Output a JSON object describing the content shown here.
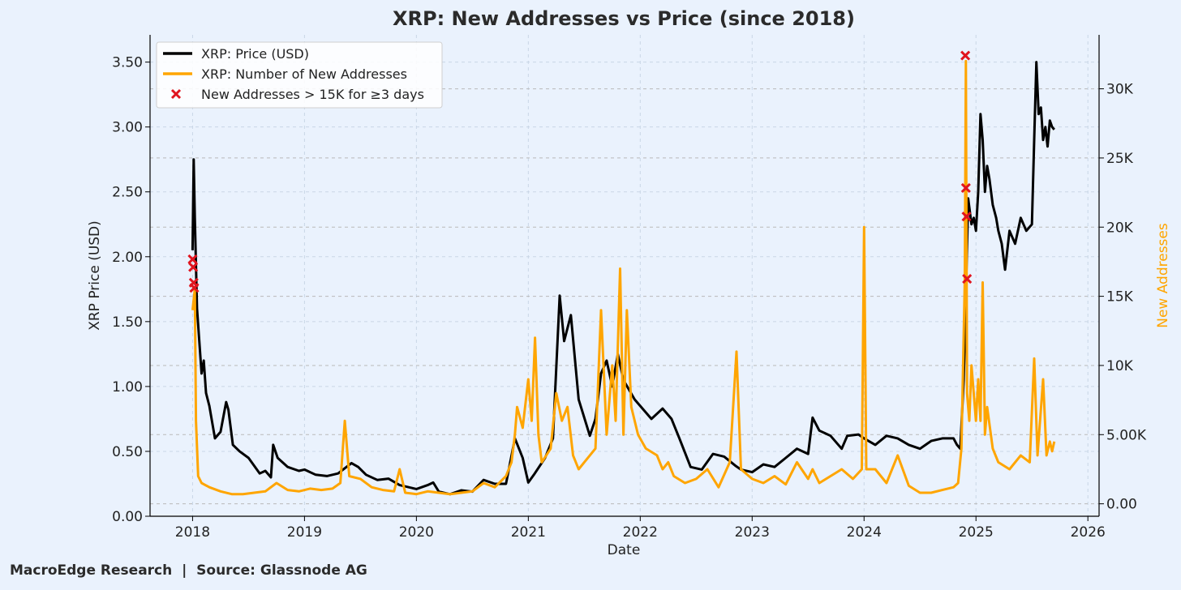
{
  "footer": {
    "brand": "MacroEdge Research",
    "separator": "|",
    "source": "Source: Glassnode AG"
  },
  "chart_data": {
    "type": "line",
    "title": "XRP: New Addresses vs Price (since 2018)",
    "xlabel": "Date",
    "ylabel": "XRP Price (USD)",
    "y2label": "New Addresses",
    "xlim": [
      2017.62,
      2026.1
    ],
    "ylim": [
      0,
      3.71
    ],
    "y2lim": [
      -900,
      33900
    ],
    "xticks": [
      2018,
      2019,
      2020,
      2021,
      2022,
      2023,
      2024,
      2025,
      2026
    ],
    "xtick_labels": [
      "2018",
      "2019",
      "2020",
      "2021",
      "2022",
      "2023",
      "2024",
      "2025",
      "2026"
    ],
    "yticks": [
      0,
      0.5,
      1.0,
      1.5,
      2.0,
      2.5,
      3.0,
      3.5
    ],
    "ytick_labels": [
      "0.00",
      "0.50",
      "1.00",
      "1.50",
      "2.00",
      "2.50",
      "3.00",
      "3.50"
    ],
    "y2ticks": [
      0,
      5000,
      10000,
      15000,
      20000,
      25000,
      30000
    ],
    "y2tick_labels": [
      "0.00",
      "5.00K",
      "10K",
      "15K",
      "20K",
      "25K",
      "30K"
    ],
    "grid": true,
    "legend_position": "top-left",
    "colors": {
      "price": "#000000",
      "addresses": "#ffa500",
      "marker": "#e0141e",
      "y2label": "#ffa500"
    },
    "series": [
      {
        "name": "XRP: Price (USD)",
        "axis": "left",
        "x": [
          2018.0,
          2018.01,
          2018.02,
          2018.04,
          2018.06,
          2018.08,
          2018.1,
          2018.12,
          2018.15,
          2018.2,
          2018.25,
          2018.3,
          2018.32,
          2018.36,
          2018.42,
          2018.5,
          2018.6,
          2018.65,
          2018.7,
          2018.72,
          2018.76,
          2018.85,
          2018.95,
          2019.0,
          2019.1,
          2019.2,
          2019.3,
          2019.42,
          2019.48,
          2019.55,
          2019.65,
          2019.75,
          2019.85,
          2020.0,
          2020.1,
          2020.15,
          2020.2,
          2020.3,
          2020.4,
          2020.5,
          2020.6,
          2020.7,
          2020.8,
          2020.88,
          2020.95,
          2021.0,
          2021.05,
          2021.15,
          2021.22,
          2021.28,
          2021.32,
          2021.38,
          2021.45,
          2021.55,
          2021.6,
          2021.65,
          2021.7,
          2021.75,
          2021.8,
          2021.85,
          2021.95,
          2022.0,
          2022.1,
          2022.2,
          2022.28,
          2022.35,
          2022.45,
          2022.55,
          2022.65,
          2022.75,
          2022.85,
          2022.9,
          2023.0,
          2023.1,
          2023.2,
          2023.3,
          2023.4,
          2023.5,
          2023.54,
          2023.6,
          2023.7,
          2023.8,
          2023.85,
          2023.95,
          2024.0,
          2024.1,
          2024.2,
          2024.3,
          2024.4,
          2024.5,
          2024.6,
          2024.7,
          2024.8,
          2024.83,
          2024.86,
          2024.89,
          2024.91,
          2024.93,
          2024.96,
          2024.98,
          2025.0,
          2025.02,
          2025.04,
          2025.06,
          2025.08,
          2025.1,
          2025.12,
          2025.15,
          2025.18,
          2025.2,
          2025.23,
          2025.26,
          2025.3,
          2025.35,
          2025.4,
          2025.45,
          2025.5,
          2025.52,
          2025.54,
          2025.56,
          2025.58,
          2025.6,
          2025.62,
          2025.64,
          2025.66,
          2025.68,
          2025.7
        ],
        "values": [
          2.05,
          2.75,
          2.3,
          1.6,
          1.35,
          1.1,
          1.2,
          0.95,
          0.85,
          0.6,
          0.65,
          0.88,
          0.82,
          0.55,
          0.5,
          0.45,
          0.33,
          0.35,
          0.3,
          0.55,
          0.45,
          0.38,
          0.35,
          0.36,
          0.32,
          0.31,
          0.33,
          0.41,
          0.38,
          0.32,
          0.28,
          0.29,
          0.24,
          0.21,
          0.24,
          0.26,
          0.19,
          0.17,
          0.2,
          0.19,
          0.28,
          0.25,
          0.25,
          0.6,
          0.45,
          0.26,
          0.32,
          0.45,
          0.6,
          1.7,
          1.35,
          1.55,
          0.9,
          0.62,
          0.75,
          1.1,
          1.2,
          1.0,
          1.25,
          1.05,
          0.9,
          0.85,
          0.75,
          0.83,
          0.75,
          0.6,
          0.38,
          0.36,
          0.48,
          0.46,
          0.39,
          0.36,
          0.34,
          0.4,
          0.38,
          0.45,
          0.52,
          0.48,
          0.76,
          0.66,
          0.62,
          0.52,
          0.62,
          0.63,
          0.6,
          0.55,
          0.62,
          0.6,
          0.55,
          0.52,
          0.58,
          0.6,
          0.6,
          0.55,
          0.52,
          1.05,
          1.7,
          2.45,
          2.25,
          2.3,
          2.2,
          2.5,
          3.1,
          2.9,
          2.5,
          2.7,
          2.6,
          2.4,
          2.3,
          2.2,
          2.1,
          1.9,
          2.2,
          2.1,
          2.3,
          2.2,
          2.25,
          2.9,
          3.5,
          3.1,
          3.15,
          2.9,
          3.0,
          2.85,
          3.05,
          3.0,
          2.98
        ]
      },
      {
        "name": "XRP: Number of New Addresses",
        "axis": "right",
        "x": [
          2018.0,
          2018.02,
          2018.03,
          2018.05,
          2018.08,
          2018.15,
          2018.25,
          2018.35,
          2018.45,
          2018.55,
          2018.65,
          2018.75,
          2018.85,
          2018.95,
          2019.05,
          2019.15,
          2019.25,
          2019.32,
          2019.36,
          2019.4,
          2019.5,
          2019.6,
          2019.7,
          2019.8,
          2019.85,
          2019.9,
          2020.0,
          2020.1,
          2020.2,
          2020.3,
          2020.4,
          2020.5,
          2020.6,
          2020.7,
          2020.8,
          2020.85,
          2020.88,
          2020.9,
          2020.95,
          2021.0,
          2021.03,
          2021.06,
          2021.09,
          2021.12,
          2021.2,
          2021.25,
          2021.3,
          2021.35,
          2021.4,
          2021.45,
          2021.5,
          2021.55,
          2021.6,
          2021.65,
          2021.7,
          2021.75,
          2021.78,
          2021.82,
          2021.85,
          2021.88,
          2021.92,
          2021.98,
          2022.05,
          2022.15,
          2022.2,
          2022.25,
          2022.3,
          2022.4,
          2022.5,
          2022.6,
          2022.7,
          2022.8,
          2022.86,
          2022.9,
          2023.0,
          2023.1,
          2023.2,
          2023.3,
          2023.4,
          2023.5,
          2023.54,
          2023.6,
          2023.7,
          2023.8,
          2023.9,
          2023.98,
          2024.0,
          2024.02,
          2024.1,
          2024.2,
          2024.3,
          2024.4,
          2024.5,
          2024.6,
          2024.7,
          2024.8,
          2024.84,
          2024.87,
          2024.9,
          2024.91,
          2024.92,
          2024.94,
          2024.96,
          2025.0,
          2025.02,
          2025.04,
          2025.06,
          2025.08,
          2025.1,
          2025.15,
          2025.2,
          2025.3,
          2025.4,
          2025.48,
          2025.52,
          2025.55,
          2025.6,
          2025.63,
          2025.66,
          2025.68,
          2025.7
        ],
        "values": [
          14000,
          15500,
          6000,
          2000,
          1500,
          1200,
          900,
          700,
          700,
          800,
          900,
          1500,
          1000,
          900,
          1100,
          1000,
          1100,
          1500,
          6000,
          2000,
          1800,
          1200,
          1000,
          900,
          2500,
          800,
          700,
          900,
          800,
          700,
          800,
          900,
          1500,
          1200,
          2000,
          3000,
          5000,
          7000,
          5500,
          9000,
          6000,
          12000,
          5000,
          3000,
          4000,
          8000,
          6000,
          7000,
          3500,
          2500,
          3000,
          3500,
          4000,
          14000,
          5000,
          10000,
          6000,
          17000,
          5000,
          14000,
          7000,
          5000,
          4000,
          3500,
          2500,
          3000,
          2000,
          1500,
          1800,
          2500,
          1200,
          3000,
          11000,
          2500,
          1800,
          1500,
          2000,
          1400,
          3000,
          1800,
          2500,
          1500,
          2000,
          2500,
          1800,
          2500,
          20000,
          2500,
          2500,
          1500,
          3500,
          1300,
          800,
          800,
          1000,
          1200,
          1500,
          4000,
          16000,
          32000,
          8000,
          6000,
          10000,
          6000,
          9000,
          6000,
          16000,
          5000,
          7000,
          4000,
          3000,
          2500,
          3500,
          3000,
          10500,
          3500,
          9000,
          3500,
          4500,
          3800,
          4500
        ]
      }
    ],
    "markers": {
      "name": "New Addresses > 15K for ≥3 days",
      "x": [
        2018.0,
        2018.005,
        2018.01,
        2018.015,
        2024.905,
        2024.91,
        2024.915,
        2024.92
      ],
      "values": [
        1.98,
        1.92,
        1.8,
        1.76,
        3.55,
        2.53,
        2.31,
        1.83
      ]
    }
  }
}
